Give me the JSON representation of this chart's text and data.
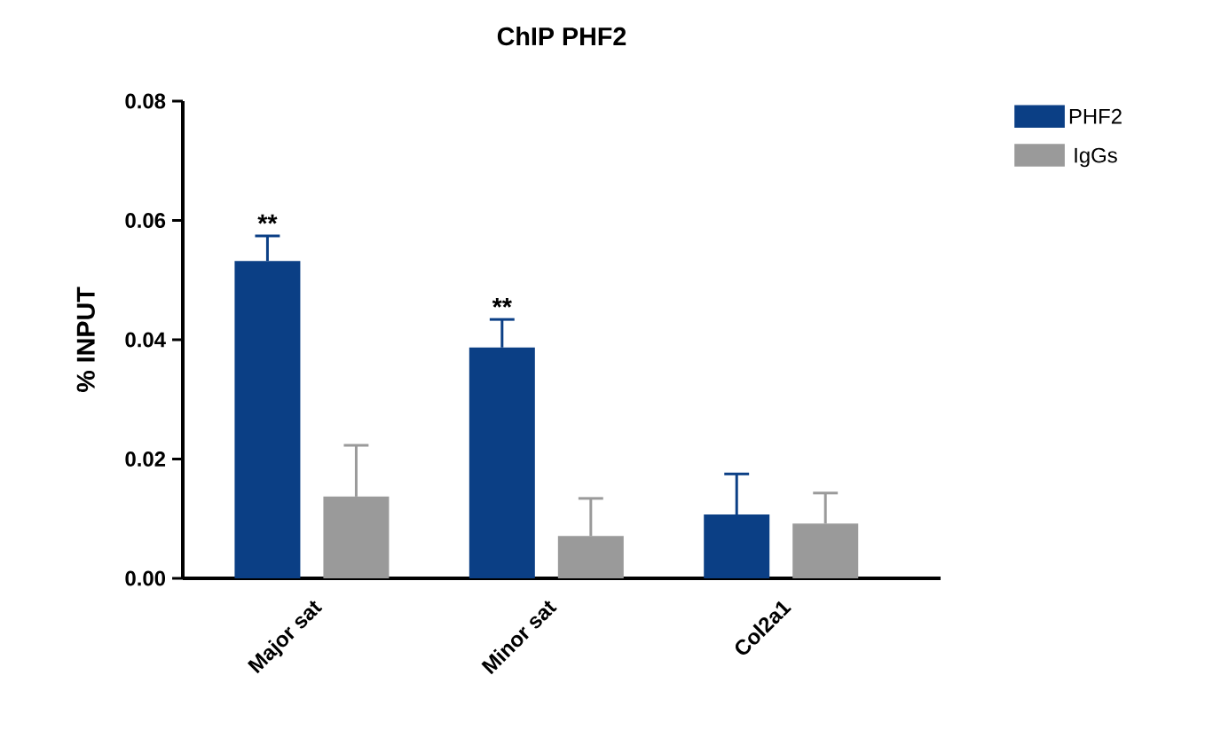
{
  "chart_data": {
    "type": "bar",
    "title": "ChIP PHF2",
    "ylabel": "% INPUT",
    "categories": [
      "Major sat",
      "Minor sat",
      "Col2a1"
    ],
    "series": [
      {
        "name": "PHF2",
        "color": "#0b3f85",
        "values": [
          0.0532,
          0.0387,
          0.0107
        ],
        "errors": [
          [
            0.0532,
            0.0574
          ],
          [
            0.0387,
            0.0434
          ],
          [
            0.0107,
            0.0175
          ]
        ]
      },
      {
        "name": "IgGs",
        "color": "#9a9a9a",
        "values": [
          0.0137,
          0.0071,
          0.0092
        ],
        "errors": [
          [
            0.0137,
            0.0223
          ],
          [
            0.0071,
            0.0134
          ],
          [
            0.0092,
            0.0143
          ]
        ]
      }
    ],
    "ylim": [
      0,
      0.08
    ],
    "yticks": [
      {
        "value": 0,
        "label": "0.00"
      },
      {
        "value": 0.02,
        "label": "0.02"
      },
      {
        "value": 0.04,
        "label": "0.04"
      },
      {
        "value": 0.06,
        "label": "0.06"
      },
      {
        "value": 0.08,
        "label": "0.08"
      }
    ],
    "annotations": [
      {
        "text": "**",
        "x": "Major sat",
        "y": 0.0574
      },
      {
        "text": "**",
        "x": "Minor sat",
        "y": 0.0434
      }
    ],
    "legend": "top right",
    "grid": false
  }
}
